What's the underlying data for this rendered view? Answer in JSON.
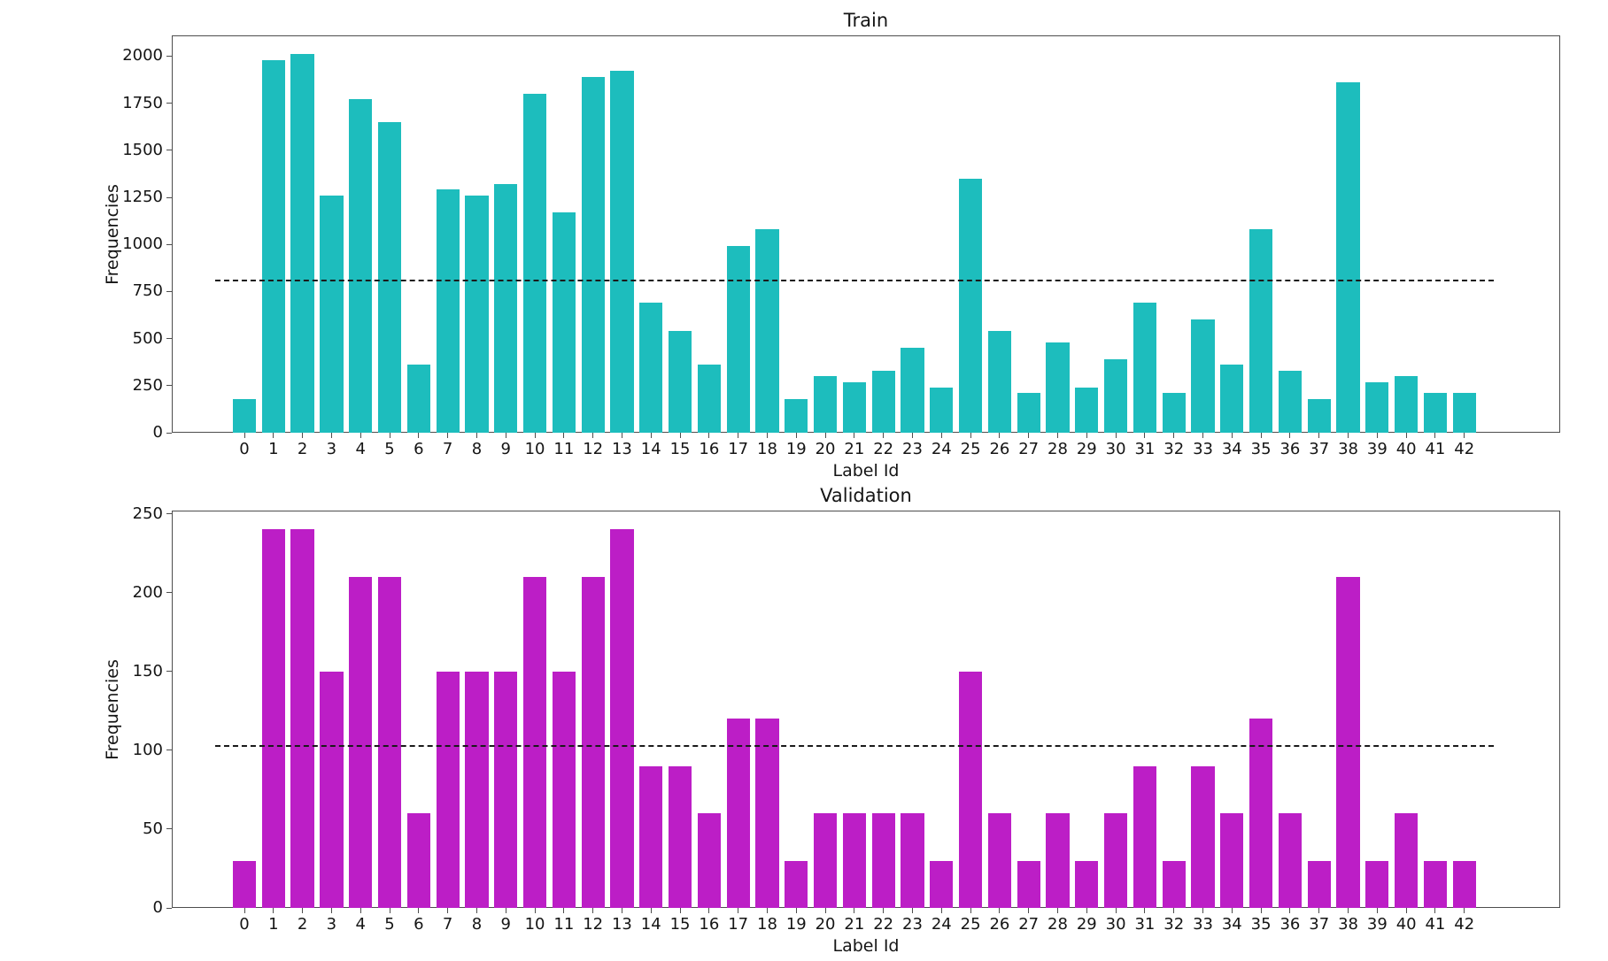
{
  "figure": {
    "background": "#ffffff",
    "text_color": "#151515",
    "axis_color": "#4d4d4d"
  },
  "chart_data": [
    {
      "type": "bar",
      "title": "Train",
      "xlabel": "Label Id",
      "ylabel": "Frequencies",
      "bar_color": "#1dbdbd",
      "bar_width": 0.8,
      "grid": false,
      "legend": null,
      "categories": [
        "0",
        "1",
        "2",
        "3",
        "4",
        "5",
        "6",
        "7",
        "8",
        "9",
        "10",
        "11",
        "12",
        "13",
        "14",
        "15",
        "16",
        "17",
        "18",
        "19",
        "20",
        "21",
        "22",
        "23",
        "24",
        "25",
        "26",
        "27",
        "28",
        "29",
        "30",
        "31",
        "32",
        "33",
        "34",
        "35",
        "36",
        "37",
        "38",
        "39",
        "40",
        "41",
        "42"
      ],
      "values": [
        180,
        1980,
        2010,
        1260,
        1770,
        1650,
        360,
        1290,
        1260,
        1320,
        1800,
        1170,
        1890,
        1920,
        690,
        540,
        360,
        990,
        1080,
        180,
        300,
        270,
        330,
        450,
        240,
        1350,
        540,
        210,
        480,
        240,
        390,
        690,
        210,
        600,
        360,
        1080,
        330,
        180,
        1860,
        270,
        300,
        210,
        210
      ],
      "yticks": [
        0,
        250,
        500,
        750,
        1000,
        1250,
        1500,
        1750,
        2000
      ],
      "ylim": [
        0,
        2110
      ],
      "xlim": [
        -2.5,
        45.3
      ],
      "mean_line": {
        "value": 809.3,
        "color": "#1a1a1a",
        "style": "dashed",
        "x_from": -1,
        "x_to": 43
      }
    },
    {
      "type": "bar",
      "title": "Validation",
      "xlabel": "Label Id",
      "ylabel": "Frequencies",
      "bar_color": "#bc1ec6",
      "bar_width": 0.8,
      "grid": false,
      "legend": null,
      "categories": [
        "0",
        "1",
        "2",
        "3",
        "4",
        "5",
        "6",
        "7",
        "8",
        "9",
        "10",
        "11",
        "12",
        "13",
        "14",
        "15",
        "16",
        "17",
        "18",
        "19",
        "20",
        "21",
        "22",
        "23",
        "24",
        "25",
        "26",
        "27",
        "28",
        "29",
        "30",
        "31",
        "32",
        "33",
        "34",
        "35",
        "36",
        "37",
        "38",
        "39",
        "40",
        "41",
        "42"
      ],
      "values": [
        30,
        240,
        240,
        150,
        210,
        210,
        60,
        150,
        150,
        150,
        210,
        150,
        210,
        240,
        90,
        90,
        60,
        120,
        120,
        30,
        60,
        60,
        60,
        60,
        30,
        150,
        60,
        30,
        60,
        30,
        60,
        90,
        30,
        90,
        60,
        120,
        60,
        30,
        210,
        30,
        60,
        30,
        30
      ],
      "yticks": [
        0,
        50,
        100,
        150,
        200,
        250
      ],
      "ylim": [
        0,
        252
      ],
      "xlim": [
        -2.5,
        45.3
      ],
      "mean_line": {
        "value": 102.6,
        "color": "#1a1a1a",
        "style": "dashed",
        "x_from": -1,
        "x_to": 43
      }
    }
  ]
}
